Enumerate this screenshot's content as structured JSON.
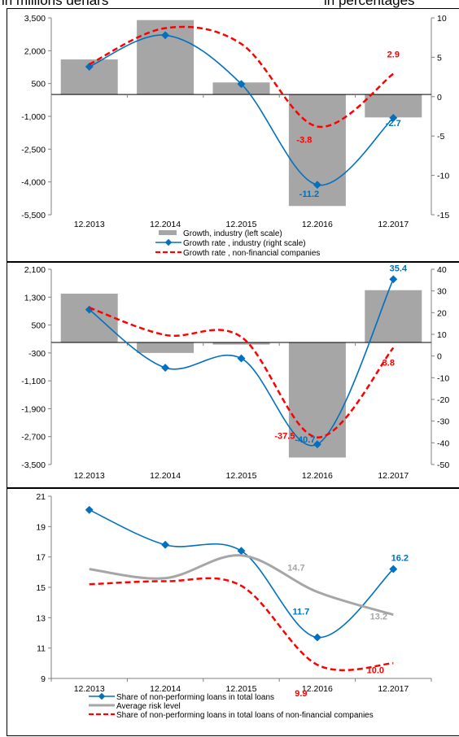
{
  "header": {
    "left": "in millions denars",
    "right": "in percentages"
  },
  "chart_data": [
    {
      "type": "bar",
      "categories": [
        "12.2013",
        "12.2014",
        "12.2015",
        "12.2016",
        "12.2017"
      ],
      "left_axis": {
        "min": -5500,
        "max": 3500,
        "ticks": [
          "3,500",
          "2,000",
          "500",
          "-1,000",
          "-2,500",
          "-4,000",
          "-5,500"
        ]
      },
      "right_axis": {
        "min": -15,
        "max": 10,
        "ticks": [
          "10",
          "5",
          "0",
          "-5",
          "-10",
          "-15"
        ]
      },
      "series": [
        {
          "name": "Growth, industry (left scale)",
          "kind": "bar",
          "axis": "left",
          "color": "#a6a6a6",
          "values": [
            1600,
            3400,
            550,
            -5100,
            -1050
          ]
        },
        {
          "name": "Growth rate , industry (right scale)",
          "kind": "line",
          "axis": "right",
          "color": "#0070c0",
          "values": [
            3.8,
            7.8,
            1.6,
            -11.2,
            -2.7
          ]
        },
        {
          "name": "Growth rate , non-financial companies",
          "kind": "dashed",
          "axis": "right",
          "color": "#ff0000",
          "values": [
            4.1,
            8.7,
            6.7,
            -3.8,
            2.9
          ]
        }
      ],
      "labels": [
        {
          "text": "2.9",
          "color": "#ff0000",
          "cat": 4,
          "value": 2.9,
          "axis": "right"
        },
        {
          "text": "-2.7",
          "color": "#0070c0",
          "cat": 4,
          "value": -2.7,
          "axis": "right"
        },
        {
          "text": "-3.8",
          "color": "#ff0000",
          "cat": 3,
          "value": -3.8,
          "axis": "right"
        },
        {
          "text": "-11.2",
          "color": "#0070c0",
          "cat": 3,
          "value": -11.2,
          "axis": "right"
        }
      ]
    },
    {
      "type": "bar",
      "categories": [
        "12.2013",
        "12.2014",
        "12.2015",
        "12.2016",
        "12.2017"
      ],
      "left_axis": {
        "min": -3500,
        "max": 2100,
        "ticks": [
          "2,100",
          "1,300",
          "500",
          "-300",
          "-1,100",
          "-1,900",
          "-2,700",
          "-3,500"
        ]
      },
      "right_axis": {
        "min": -50,
        "max": 40,
        "ticks": [
          "40",
          "30",
          "20",
          "10",
          "0",
          "-10",
          "-20",
          "-30",
          "-40",
          "-50"
        ]
      },
      "series": [
        {
          "kind": "bar",
          "axis": "left",
          "color": "#a6a6a6",
          "values": [
            1400,
            -300,
            -60,
            -3300,
            1500
          ]
        },
        {
          "kind": "line",
          "axis": "right",
          "color": "#0070c0",
          "values": [
            21.4,
            -5.4,
            -1.1,
            -40.7,
            35.4
          ]
        },
        {
          "kind": "dashed",
          "axis": "right",
          "color": "#ff0000",
          "values": [
            22.3,
            9.7,
            8.8,
            -37.5,
            3.8
          ]
        }
      ],
      "labels": [
        {
          "text": "35.4",
          "color": "#0070c0",
          "cat": 4,
          "value": 35.4,
          "axis": "right"
        },
        {
          "text": "3.8",
          "color": "#ff0000",
          "cat": 4,
          "value": 3.8,
          "axis": "right"
        },
        {
          "text": "-37.5",
          "color": "#ff0000",
          "cat": 3,
          "value": -37.5,
          "axis": "right"
        },
        {
          "text": "-40.7",
          "color": "#0070c0",
          "cat": 3,
          "value": -40.7,
          "axis": "right"
        }
      ]
    },
    {
      "type": "line",
      "categories": [
        "12.2013",
        "12.2014",
        "12.2015",
        "12.2016",
        "12.2017"
      ],
      "left_axis": {
        "min": 9,
        "max": 21,
        "ticks": [
          "21",
          "19",
          "17",
          "15",
          "13",
          "11",
          "9"
        ]
      },
      "series": [
        {
          "name": "Share of non-performing loans in total loans",
          "kind": "line",
          "axis": "left",
          "color": "#0070c0",
          "values": [
            20.1,
            17.8,
            17.4,
            11.7,
            16.2
          ]
        },
        {
          "name": "Average risk level",
          "kind": "gray",
          "axis": "left",
          "color": "#a6a6a6",
          "values": [
            16.2,
            15.6,
            17.1,
            14.7,
            13.2
          ]
        },
        {
          "name": "Share of non-performing loans in total loans of non-financial companies",
          "kind": "dashed",
          "axis": "left",
          "color": "#ff0000",
          "values": [
            15.2,
            15.4,
            15.1,
            9.9,
            10.0
          ]
        }
      ],
      "labels": [
        {
          "text": "16.2",
          "color": "#0070c0",
          "cat": 4,
          "value": 16.2,
          "axis": "left"
        },
        {
          "text": "14.7",
          "color": "#a6a6a6",
          "cat": 3,
          "value": 14.7,
          "axis": "left"
        },
        {
          "text": "13.2",
          "color": "#a6a6a6",
          "cat": 4,
          "value": 13.2,
          "axis": "left"
        },
        {
          "text": "11.7",
          "color": "#0070c0",
          "cat": 3,
          "value": 11.7,
          "axis": "left"
        },
        {
          "text": "9.9",
          "color": "#ff0000",
          "cat": 3,
          "value": 9.9,
          "axis": "left"
        },
        {
          "text": "10.0",
          "color": "#ff0000",
          "cat": 4,
          "value": 10.0,
          "axis": "left"
        }
      ]
    }
  ]
}
